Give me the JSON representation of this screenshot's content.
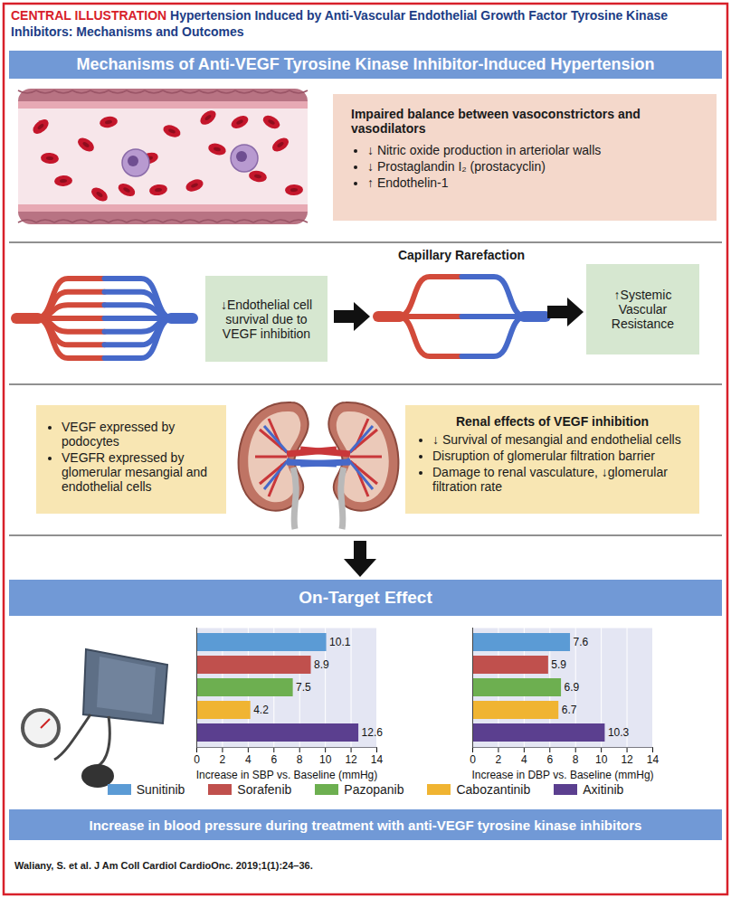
{
  "header": {
    "label": "CENTRAL ILLUSTRATION",
    "title": "Hypertension Induced by Anti-Vascular Endothelial Growth Factor Tyrosine Kinase Inhibitors: Mechanisms and Outcomes"
  },
  "mechanisms": {
    "banner": "Mechanisms of Anti-VEGF Tyrosine Kinase Inhibitor-Induced Hypertension",
    "vasoactive": {
      "title": "Impaired balance between vasoconstrictors and vasodilators",
      "items": [
        "↓ Nitric oxide production in arteriolar walls",
        "↓ Prostaglandin I₂ (prostacyclin)",
        "↑ Endothelin-1"
      ]
    },
    "rarefaction": {
      "title": "Capillary Rarefaction",
      "cause": "↓Endothelial cell survival due to VEGF inhibition",
      "effect": "↑Systemic Vascular Resistance"
    },
    "renal": {
      "expression": [
        "VEGF expressed by podocytes",
        "VEGFR expressed by glomerular mesangial and endothelial cells"
      ],
      "title": "Renal effects of VEGF inhibition",
      "effects": [
        "↓ Survival of mesangial and endothelial cells",
        "Disruption of glomerular filtration barrier",
        "Damage to renal vasculature, ↓glomerular filtration rate"
      ]
    }
  },
  "outcome": {
    "banner": "On-Target Effect",
    "footer": "Increase in blood pressure during treatment with anti-VEGF tyrosine kinase inhibitors"
  },
  "citation": "Waliany, S. et al. J Am Coll Cardiol CardioOnc. 2019;1(1):24–36.",
  "chart_data": [
    {
      "type": "bar",
      "orientation": "horizontal",
      "categories": [
        "Sunitinib",
        "Sorafenib",
        "Pazopanib",
        "Cabozantinib",
        "Axitinib"
      ],
      "values": [
        10.1,
        8.9,
        7.5,
        4.2,
        12.6
      ],
      "colors": [
        "#5b9bd5",
        "#c0504d",
        "#6daf50",
        "#f0b432",
        "#5b3f8f"
      ],
      "x_label": "Increase in SBP vs. Baseline (mmHg)",
      "xlim": [
        0,
        14
      ],
      "xticks": [
        0,
        2,
        4,
        6,
        8,
        10,
        12,
        14
      ],
      "data_labels": true,
      "tick_labels": "x",
      "legend": "bottom"
    },
    {
      "type": "bar",
      "orientation": "horizontal",
      "categories": [
        "Sunitinib",
        "Sorafenib",
        "Pazopanib",
        "Cabozantinib",
        "Axitinib"
      ],
      "values": [
        7.6,
        5.9,
        6.9,
        6.7,
        10.3
      ],
      "colors": [
        "#5b9bd5",
        "#c0504d",
        "#6daf50",
        "#f0b432",
        "#5b3f8f"
      ],
      "x_label": "Increase in DBP vs. Baseline (mmHg)",
      "xlim": [
        0,
        14
      ],
      "xticks": [
        0,
        2,
        4,
        6,
        8,
        10,
        12,
        14
      ],
      "data_labels": true,
      "tick_labels": "x"
    }
  ]
}
